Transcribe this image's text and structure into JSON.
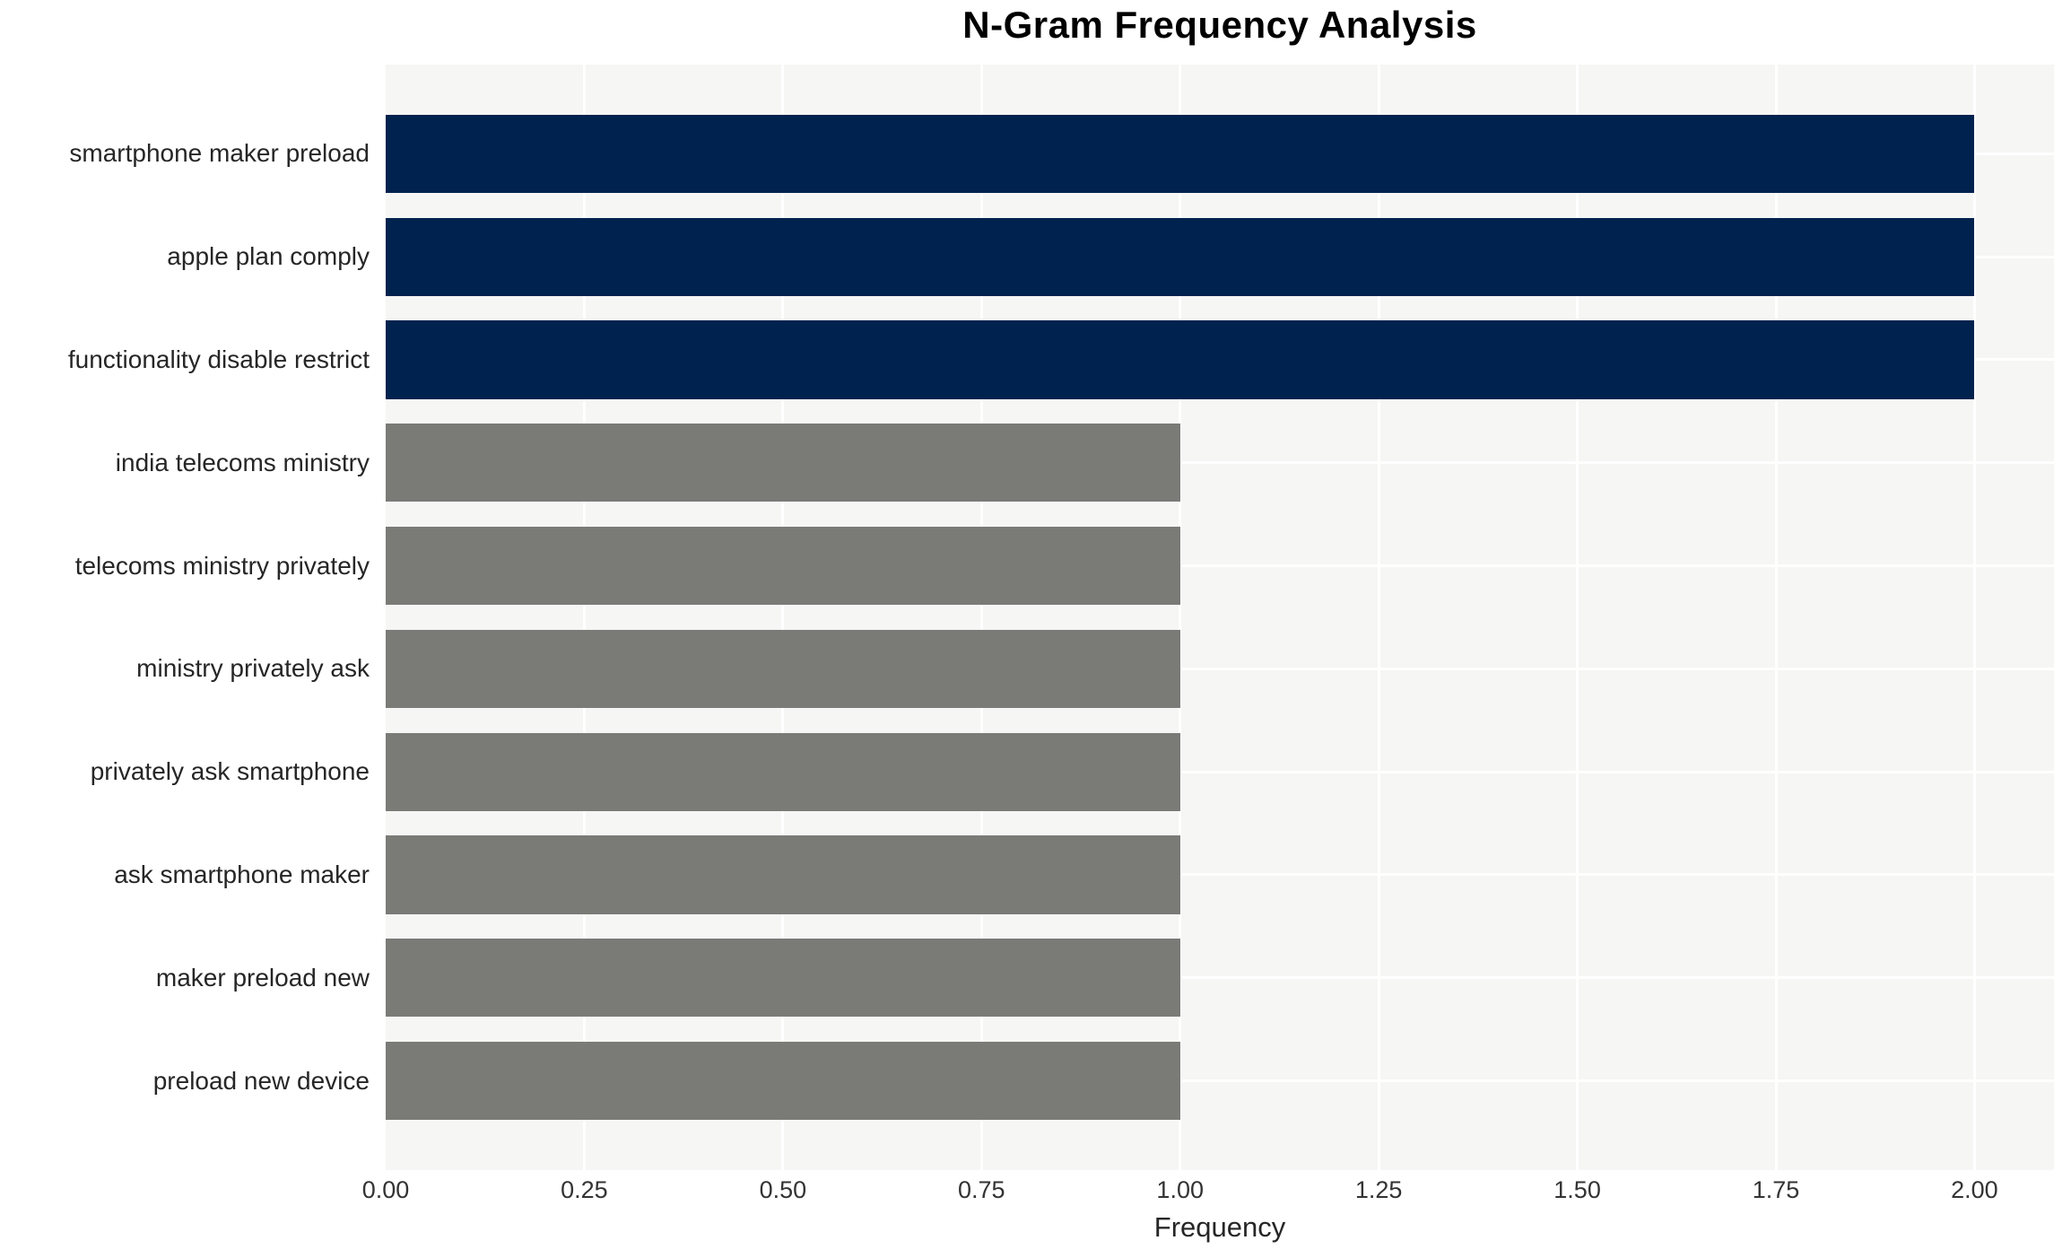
{
  "chart_data": {
    "type": "bar",
    "orientation": "horizontal",
    "title": "N-Gram Frequency Analysis",
    "xlabel": "Frequency",
    "ylabel": "",
    "categories": [
      "smartphone maker preload",
      "apple plan comply",
      "functionality disable restrict",
      "india telecoms ministry",
      "telecoms ministry privately",
      "ministry privately ask",
      "privately ask smartphone",
      "ask smartphone maker",
      "maker preload new",
      "preload new device"
    ],
    "values": [
      2,
      2,
      2,
      1,
      1,
      1,
      1,
      1,
      1,
      1
    ],
    "bar_colors": [
      "#00224e",
      "#00224e",
      "#00224e",
      "#7a7a77",
      "#7a7a77",
      "#7a7a77",
      "#7a7a77",
      "#7a7a77",
      "#7a7a77",
      "#7a7a77"
    ],
    "xlim": [
      0,
      2.1
    ],
    "xticks": [
      "0.00",
      "0.25",
      "0.50",
      "0.75",
      "1.00",
      "1.25",
      "1.50",
      "1.75",
      "2.00"
    ],
    "xtick_values": [
      0,
      0.25,
      0.5,
      0.75,
      1.0,
      1.25,
      1.5,
      1.75,
      2.0
    ],
    "grid": true,
    "legend": "none"
  },
  "style": {
    "plot_background": "#f6f6f5",
    "grid_color": "#ffffff",
    "title_color": "#000000",
    "label_color": "#262626",
    "tick_color": "#333333",
    "high_color": "#00224e",
    "low_color": "#7a7a77"
  }
}
